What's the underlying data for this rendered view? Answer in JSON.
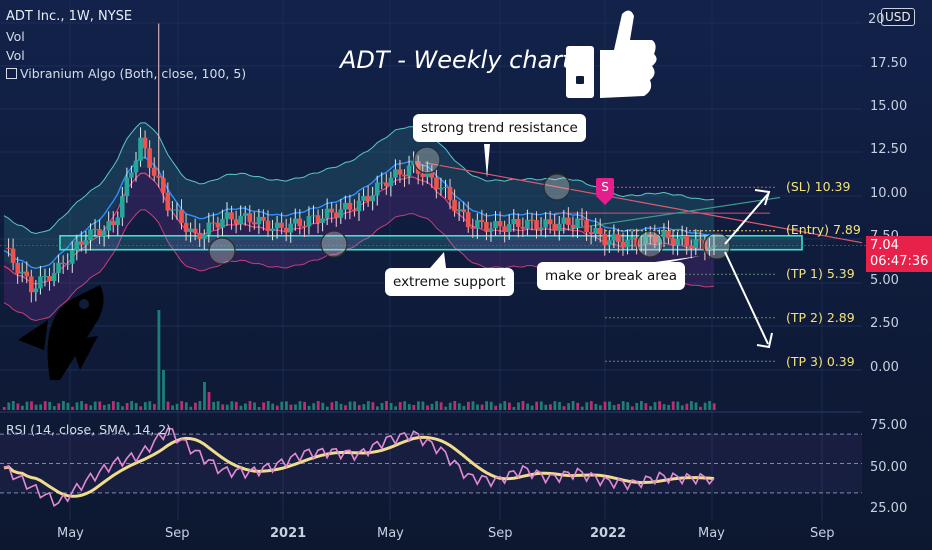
{
  "header": {
    "ticker": "ADT Inc., 1W, NYSE",
    "vol1": "Vol",
    "vol2": "Vol",
    "indicator": "Vibranium Algo (Both, close, 100, 5)",
    "indicator_icon": "checkbox-icon",
    "currency_button": "USD",
    "top_tick_partial": "20"
  },
  "title": "ADT - Weekly chart",
  "callouts": {
    "strong_resistance": "strong trend resistance",
    "extreme_support": "extreme support",
    "make_or_break": "make or break area"
  },
  "signal_marker": "S",
  "price_axis": {
    "ticks": [
      "17.50",
      "15.00",
      "12.50",
      "10.00",
      "7.50",
      "5.00",
      "2.50",
      "0.00"
    ],
    "last_price": "7.04",
    "countdown": "06:47:36"
  },
  "rsi_axis": {
    "ticks": [
      "75.00",
      "50.00",
      "25.00"
    ]
  },
  "time_axis": {
    "ticks": [
      "May",
      "Sep",
      "2021",
      "May",
      "Sep",
      "2022",
      "May",
      "Sep"
    ]
  },
  "rsi_legend": "RSI (14, close, SMA, 14, 2)",
  "levels": [
    {
      "label": "(SL) 10.39",
      "value": 10.39
    },
    {
      "label": "(Entry) 7.89",
      "value": 7.89
    },
    {
      "label": "(TP 1) 5.39",
      "value": 5.39
    },
    {
      "label": "(TP 2) 2.89",
      "value": 2.89
    },
    {
      "label": "(TP 3) 0.39",
      "value": 0.39
    }
  ],
  "colors": {
    "background": "#0f1c3c",
    "up_candle": "#26a69a",
    "down_candle": "#ef5350",
    "support_band": "#40e0d0",
    "rsi_line": "#e38ad4",
    "rsi_sma": "#f0dc8c",
    "last_price": "#e8214a",
    "level_text": "#f3e37a"
  },
  "chart_data": {
    "type": "candlestick",
    "title": "ADT - Weekly chart",
    "symbol": "ADT Inc., 1W, NYSE",
    "ylim": [
      -1.5,
      20
    ],
    "time_ticks": [
      "May",
      "Sep",
      "2021",
      "May",
      "Sep",
      "2022",
      "May",
      "Sep"
    ],
    "close_path": [
      {
        "x": "2020-03",
        "y": 6.9
      },
      {
        "x": "2020-04",
        "y": 4.6
      },
      {
        "x": "2020-05",
        "y": 5.7
      },
      {
        "x": "2020-06",
        "y": 7.6
      },
      {
        "x": "2020-07",
        "y": 8.2
      },
      {
        "x": "2020-08",
        "y": 13.0
      },
      {
        "x": "2020-09",
        "y": 9.4
      },
      {
        "x": "2020-10",
        "y": 7.5
      },
      {
        "x": "2020-11",
        "y": 8.6
      },
      {
        "x": "2020-12",
        "y": 8.6
      },
      {
        "x": "2021-01",
        "y": 8.0
      },
      {
        "x": "2021-02",
        "y": 8.4
      },
      {
        "x": "2021-03",
        "y": 8.9
      },
      {
        "x": "2021-04",
        "y": 9.4
      },
      {
        "x": "2021-05",
        "y": 10.8
      },
      {
        "x": "2021-06",
        "y": 11.6
      },
      {
        "x": "2021-07",
        "y": 10.4
      },
      {
        "x": "2021-08",
        "y": 8.3
      },
      {
        "x": "2021-09",
        "y": 8.1
      },
      {
        "x": "2021-10",
        "y": 8.3
      },
      {
        "x": "2021-11",
        "y": 8.2
      },
      {
        "x": "2021-12",
        "y": 8.4
      },
      {
        "x": "2022-01",
        "y": 7.4
      },
      {
        "x": "2022-02",
        "y": 7.2
      },
      {
        "x": "2022-03",
        "y": 7.6
      },
      {
        "x": "2022-04",
        "y": 7.2
      },
      {
        "x": "2022-05",
        "y": 7.04
      }
    ],
    "support_zone": [
      6.8,
      7.6
    ],
    "trendline_resistance": [
      {
        "x": "2021-06",
        "y": 11.8
      },
      {
        "x": "2022-05",
        "y": 8.0
      }
    ],
    "levels": [
      {
        "name": "SL",
        "value": 10.39
      },
      {
        "name": "Entry",
        "value": 7.89
      },
      {
        "name": "TP 1",
        "value": 5.39
      },
      {
        "name": "TP 2",
        "value": 2.89
      },
      {
        "name": "TP 3",
        "value": 0.39
      }
    ],
    "last_price": 7.04,
    "rsi": {
      "ylim": [
        15,
        85
      ],
      "levels": [
        70,
        50,
        30
      ],
      "values": [
        47,
        34,
        23,
        38,
        50,
        56,
        73,
        58,
        45,
        44,
        49,
        57,
        58,
        56,
        66,
        70,
        59,
        41,
        38,
        46,
        40,
        44,
        38,
        36,
        41,
        40,
        40
      ]
    }
  }
}
